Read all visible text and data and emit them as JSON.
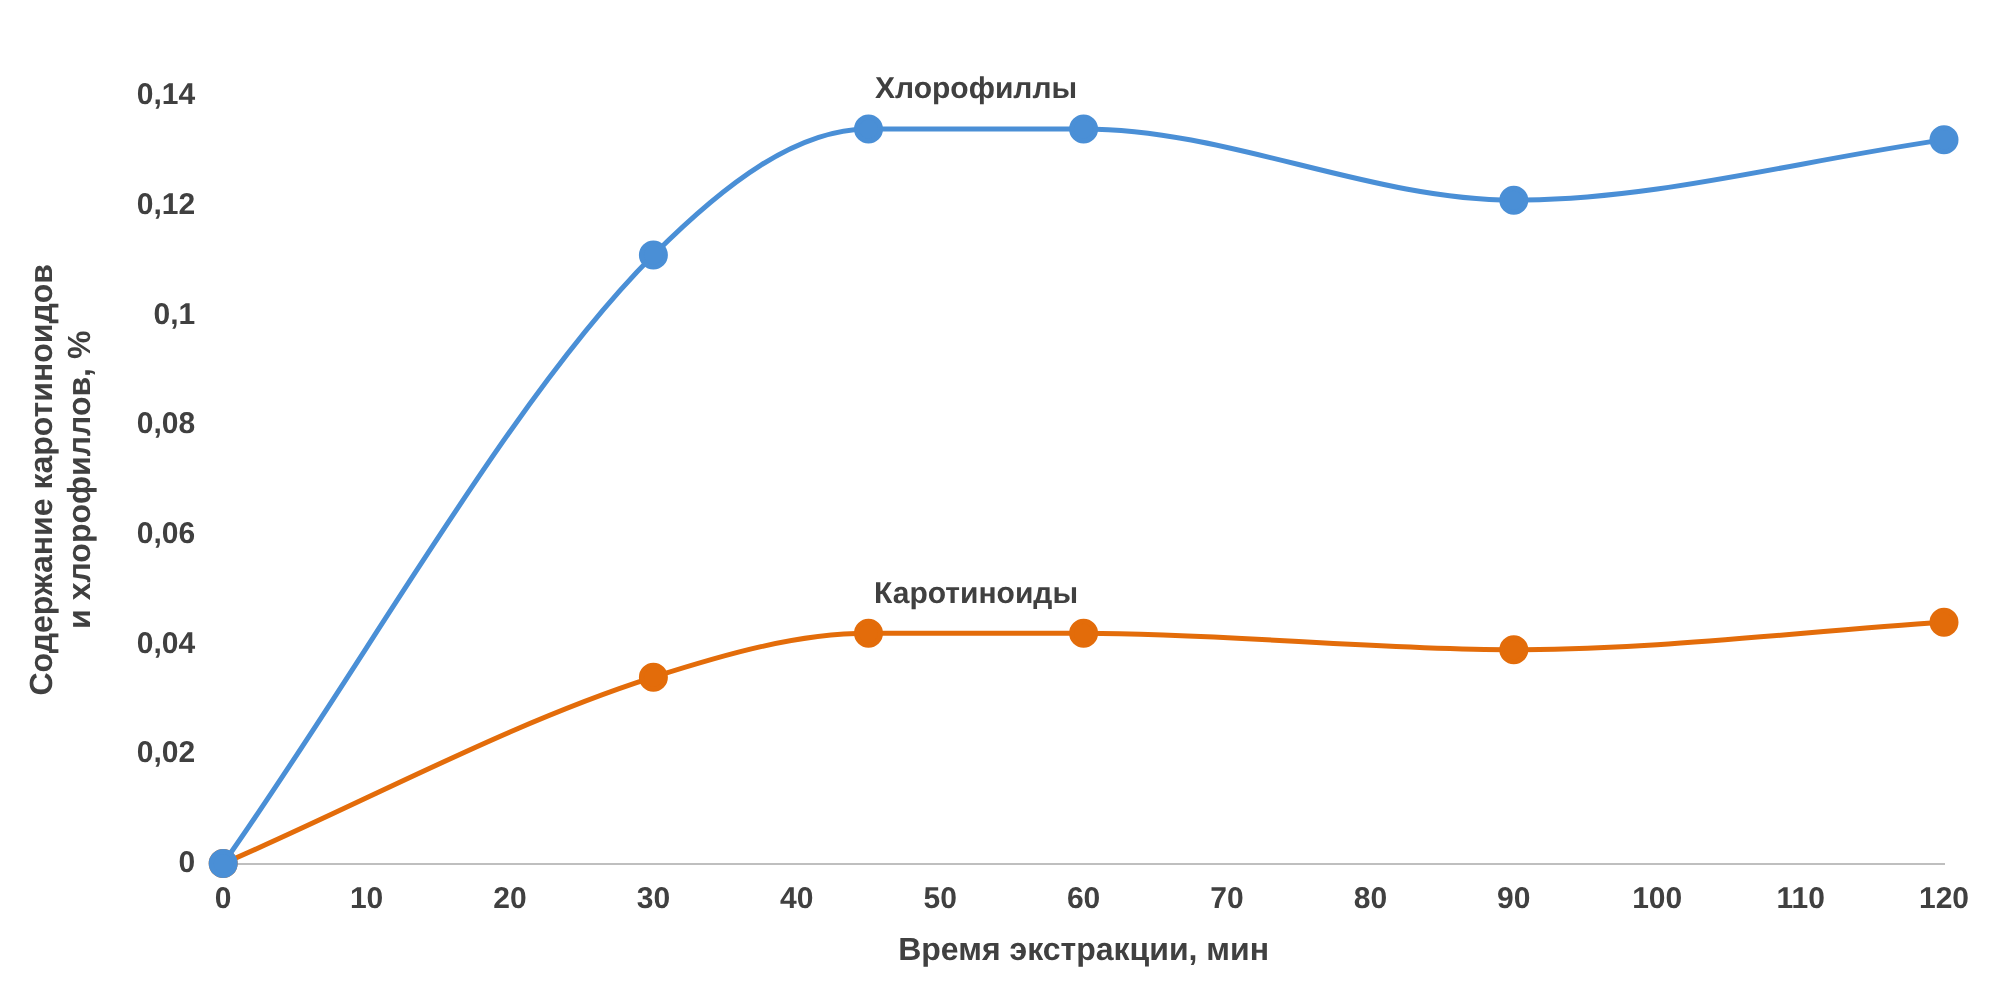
{
  "chart_data": {
    "type": "line",
    "xlabel": "Время экстракции, мин",
    "ylabel": "Содержание каротиноидов и хлорофиллов, %",
    "x": [
      0,
      30,
      45,
      60,
      90,
      120
    ],
    "series": [
      {
        "name": "Хлорофиллы",
        "color": "#4a8fd6",
        "values": [
          0,
          0.111,
          0.134,
          0.134,
          0.121,
          0.132
        ]
      },
      {
        "name": "Каротиноиды",
        "color": "#e36c0a",
        "values": [
          0,
          0.034,
          0.042,
          0.042,
          0.039,
          0.044
        ]
      }
    ],
    "xlim": [
      0,
      120
    ],
    "xticks": [
      0,
      10,
      20,
      30,
      40,
      50,
      60,
      70,
      80,
      90,
      100,
      110,
      120
    ],
    "ylim": [
      0,
      0.14
    ],
    "yticks": [
      {
        "value": 0,
        "label": "0"
      },
      {
        "value": 0.02,
        "label": "0,02"
      },
      {
        "value": 0.04,
        "label": "0,04"
      },
      {
        "value": 0.06,
        "label": "0,06"
      },
      {
        "value": 0.08,
        "label": "0,08"
      },
      {
        "value": 0.1,
        "label": "0,1"
      },
      {
        "value": 0.12,
        "label": "0,12"
      },
      {
        "value": 0.14,
        "label": "0,14"
      }
    ],
    "grid": false,
    "legend": false,
    "marker": "circle",
    "line_style": "solid"
  }
}
